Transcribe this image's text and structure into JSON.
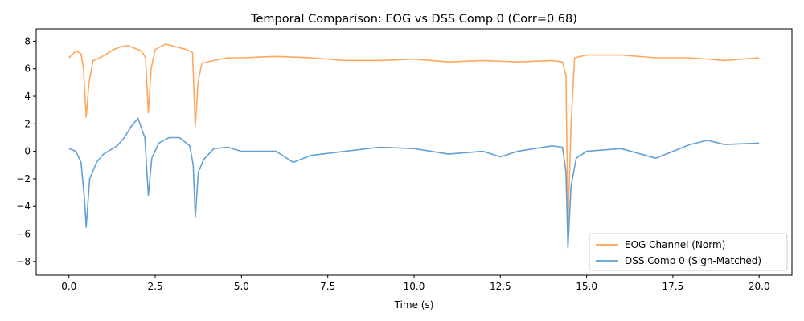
{
  "chart_data": {
    "type": "line",
    "title": "Temporal Comparison: EOG vs DSS Comp 0 (Corr=0.68)",
    "xlabel": "Time (s)",
    "ylabel": "",
    "xlim": [
      -0.95,
      20.95
    ],
    "ylim": [
      -9.0,
      8.9
    ],
    "xticks": [
      0,
      2.5,
      5,
      7.5,
      10,
      12.5,
      15,
      17.5,
      20
    ],
    "xtick_labels": [
      "0.0",
      "2.5",
      "5.0",
      "7.5",
      "10.0",
      "12.5",
      "15.0",
      "17.5",
      "20.0"
    ],
    "yticks": [
      -8,
      -6,
      -4,
      -2,
      0,
      2,
      4,
      6,
      8
    ],
    "ytick_labels": [
      "−8",
      "−6",
      "−4",
      "−2",
      "0",
      "2",
      "4",
      "6",
      "8"
    ],
    "grid": false,
    "legend_position": "bottom-right",
    "series": [
      {
        "name": "EOG Channel (Norm)",
        "color": "#ffa354",
        "points": [
          [
            0.0,
            6.8
          ],
          [
            0.2,
            7.3
          ],
          [
            0.35,
            7.1
          ],
          [
            0.42,
            6.0
          ],
          [
            0.5,
            2.5
          ],
          [
            0.58,
            5.0
          ],
          [
            0.7,
            6.6
          ],
          [
            0.9,
            6.8
          ],
          [
            1.1,
            7.1
          ],
          [
            1.3,
            7.4
          ],
          [
            1.5,
            7.6
          ],
          [
            1.7,
            7.7
          ],
          [
            1.9,
            7.5
          ],
          [
            2.1,
            7.3
          ],
          [
            2.22,
            6.8
          ],
          [
            2.3,
            2.8
          ],
          [
            2.38,
            6.0
          ],
          [
            2.5,
            7.4
          ],
          [
            2.8,
            7.8
          ],
          [
            3.1,
            7.6
          ],
          [
            3.4,
            7.4
          ],
          [
            3.58,
            7.2
          ],
          [
            3.66,
            1.8
          ],
          [
            3.74,
            5.0
          ],
          [
            3.85,
            6.4
          ],
          [
            4.2,
            6.6
          ],
          [
            4.6,
            6.8
          ],
          [
            5.0,
            6.8
          ],
          [
            6.0,
            6.9
          ],
          [
            7.0,
            6.8
          ],
          [
            8.0,
            6.6
          ],
          [
            9.0,
            6.6
          ],
          [
            10.0,
            6.7
          ],
          [
            11.0,
            6.5
          ],
          [
            12.0,
            6.6
          ],
          [
            13.0,
            6.5
          ],
          [
            14.0,
            6.6
          ],
          [
            14.3,
            6.5
          ],
          [
            14.4,
            5.5
          ],
          [
            14.46,
            -5.5
          ],
          [
            14.55,
            2.0
          ],
          [
            14.65,
            6.8
          ],
          [
            15.0,
            7.0
          ],
          [
            15.5,
            7.0
          ],
          [
            16.0,
            7.0
          ],
          [
            17.0,
            6.8
          ],
          [
            18.0,
            6.8
          ],
          [
            19.0,
            6.6
          ],
          [
            20.0,
            6.8
          ]
        ]
      },
      {
        "name": "DSS Comp 0 (Sign-Matched)",
        "color": "#5b9bd5",
        "points": [
          [
            0.0,
            0.2
          ],
          [
            0.2,
            0.0
          ],
          [
            0.35,
            -0.8
          ],
          [
            0.45,
            -3.5
          ],
          [
            0.5,
            -5.5
          ],
          [
            0.6,
            -2.0
          ],
          [
            0.8,
            -0.8
          ],
          [
            1.0,
            -0.2
          ],
          [
            1.2,
            0.1
          ],
          [
            1.4,
            0.4
          ],
          [
            1.6,
            1.0
          ],
          [
            1.8,
            1.8
          ],
          [
            2.0,
            2.4
          ],
          [
            2.2,
            1.0
          ],
          [
            2.3,
            -3.2
          ],
          [
            2.4,
            -0.5
          ],
          [
            2.6,
            0.6
          ],
          [
            2.9,
            1.0
          ],
          [
            3.2,
            1.0
          ],
          [
            3.5,
            0.4
          ],
          [
            3.6,
            -1.0
          ],
          [
            3.66,
            -4.8
          ],
          [
            3.75,
            -1.5
          ],
          [
            3.9,
            -0.6
          ],
          [
            4.2,
            0.2
          ],
          [
            4.6,
            0.3
          ],
          [
            5.0,
            0.0
          ],
          [
            6.0,
            0.0
          ],
          [
            6.5,
            -0.8
          ],
          [
            7.0,
            -0.3
          ],
          [
            8.0,
            0.0
          ],
          [
            9.0,
            0.3
          ],
          [
            10.0,
            0.2
          ],
          [
            11.0,
            -0.2
          ],
          [
            12.0,
            0.0
          ],
          [
            12.5,
            -0.4
          ],
          [
            13.0,
            0.0
          ],
          [
            13.5,
            0.2
          ],
          [
            14.0,
            0.4
          ],
          [
            14.3,
            0.3
          ],
          [
            14.4,
            -1.5
          ],
          [
            14.46,
            -7.0
          ],
          [
            14.55,
            -2.5
          ],
          [
            14.7,
            -0.5
          ],
          [
            15.0,
            0.0
          ],
          [
            16.0,
            0.2
          ],
          [
            17.0,
            -0.5
          ],
          [
            18.0,
            0.5
          ],
          [
            18.5,
            0.8
          ],
          [
            19.0,
            0.5
          ],
          [
            20.0,
            0.6
          ]
        ]
      }
    ]
  }
}
